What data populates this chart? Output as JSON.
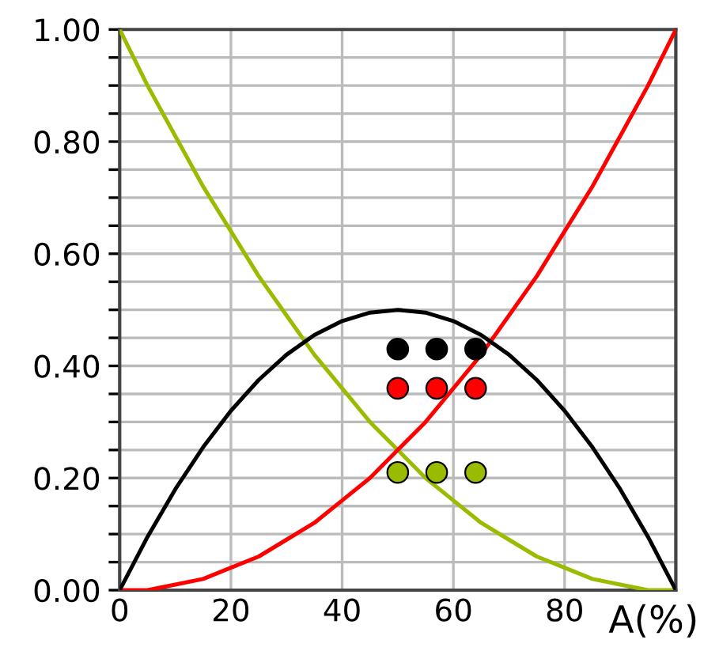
{
  "chart_data": {
    "type": "line",
    "xlabel": "A(%)",
    "xlim": [
      0,
      100
    ],
    "ylim": [
      0,
      1
    ],
    "xticks": [
      0,
      20,
      40,
      60,
      80,
      {
        "value": 100,
        "label": null
      }
    ],
    "yticks": [
      {
        "value": 0,
        "label": "0.00"
      },
      {
        "value": 0.05,
        "label": null
      },
      {
        "value": 0.1,
        "label": null
      },
      {
        "value": 0.15,
        "label": null
      },
      {
        "value": 0.2,
        "label": "0.20"
      },
      {
        "value": 0.25,
        "label": null
      },
      {
        "value": 0.3,
        "label": null
      },
      {
        "value": 0.35,
        "label": null
      },
      {
        "value": 0.4,
        "label": "0.40"
      },
      {
        "value": 0.45,
        "label": null
      },
      {
        "value": 0.5,
        "label": null
      },
      {
        "value": 0.55,
        "label": null
      },
      {
        "value": 0.6,
        "label": "0.60"
      },
      {
        "value": 0.65,
        "label": null
      },
      {
        "value": 0.7,
        "label": null
      },
      {
        "value": 0.75,
        "label": null
      },
      {
        "value": 0.8,
        "label": "0.80"
      },
      {
        "value": 0.85,
        "label": null
      },
      {
        "value": 0.9,
        "label": null
      },
      {
        "value": 0.95,
        "label": null
      },
      {
        "value": 1,
        "label": "1.00"
      }
    ],
    "grid": true,
    "legend": false,
    "marker": "none",
    "line_style": "solid",
    "x": [
      0,
      5,
      10,
      15,
      20,
      25,
      30,
      35,
      40,
      45,
      50,
      55,
      60,
      65,
      70,
      75,
      80,
      85,
      90,
      95,
      100
    ],
    "series": [
      {
        "color": "#99bb00",
        "values": [
          1,
          0.9,
          0.81,
          0.72,
          0.64,
          0.56,
          0.49,
          0.42,
          0.36,
          0.3,
          0.25,
          0.2,
          0.16,
          0.12,
          0.09,
          0.06,
          0.04,
          0.02,
          0.01,
          0,
          0
        ]
      },
      {
        "color": "#ff0000",
        "values": [
          0,
          0,
          0.01,
          0.02,
          0.04,
          0.06,
          0.09,
          0.12,
          0.16,
          0.2,
          0.25,
          0.3,
          0.36,
          0.42,
          0.49,
          0.56,
          0.64,
          0.72,
          0.81,
          0.9,
          1
        ]
      },
      {
        "color": "#000000",
        "values": [
          0,
          0.095,
          0.18,
          0.255,
          0.32,
          0.375,
          0.42,
          0.455,
          0.48,
          0.495,
          0.5,
          0.495,
          0.48,
          0.455,
          0.42,
          0.375,
          0.32,
          0.255,
          0.18,
          0.095,
          0
        ]
      },
      {
        "type": "scatter",
        "marker": "circle",
        "color": "#000000",
        "x": [
          50,
          57,
          64
        ],
        "values": [
          0.43,
          0.43,
          0.43
        ]
      },
      {
        "type": "scatter",
        "marker": "circle",
        "color": "#ff0000",
        "x": [
          50,
          57,
          64
        ],
        "values": [
          0.36,
          0.36,
          0.36
        ]
      },
      {
        "type": "scatter",
        "marker": "circle",
        "color": "#99bb00",
        "x": [
          50,
          57,
          64
        ],
        "values": [
          0.21,
          0.21,
          0.21
        ]
      }
    ]
  }
}
